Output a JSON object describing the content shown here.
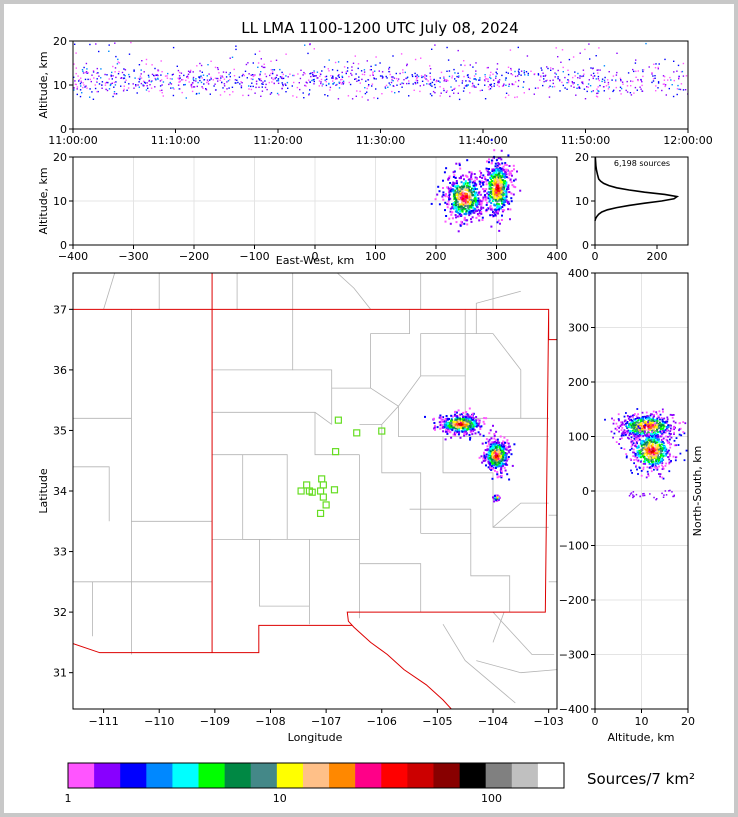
{
  "title": "LL LMA 1100-1200 UTC July 08, 2024",
  "chart_data": [
    {
      "panel": "time-height",
      "type": "scatter",
      "ylabel": "Altitude, km",
      "x_ticks": [
        "11:00:00",
        "11:10:00",
        "11:20:00",
        "11:30:00",
        "11:40:00",
        "11:50:00",
        "12:00:00"
      ],
      "x_range": [
        "11:00:00",
        "12:00:00"
      ],
      "ylim": [
        0,
        20
      ],
      "y_ticks": [
        0,
        10,
        20
      ],
      "band_altitude_km": [
        7,
        16
      ]
    },
    {
      "panel": "east-west altitude",
      "type": "heatmap",
      "xlabel": "East-West, km",
      "ylabel": "Altitude, km",
      "xlim": [
        -400,
        400
      ],
      "x_ticks": [
        -400,
        -300,
        -200,
        -100,
        0,
        100,
        200,
        300,
        400
      ],
      "ylim": [
        0,
        20
      ],
      "y_ticks": [
        0,
        10,
        20
      ],
      "grid": true,
      "clusters": [
        {
          "x_km": 245,
          "alt_km": 11,
          "x_spread": 35,
          "alt_spread": 6
        },
        {
          "x_km": 300,
          "alt_km": 13,
          "x_spread": 25,
          "alt_spread": 7
        }
      ]
    },
    {
      "panel": "altitude histogram",
      "type": "line",
      "annotation": "6,198 sources",
      "xlim": [
        0,
        300
      ],
      "x_ticks": [
        0,
        200
      ],
      "ylim": [
        0,
        20
      ],
      "y_ticks": [
        0,
        10,
        20
      ],
      "profile": [
        [
          0,
          5.5
        ],
        [
          2,
          6
        ],
        [
          6,
          6.5
        ],
        [
          12,
          7
        ],
        [
          22,
          7.5
        ],
        [
          40,
          8
        ],
        [
          70,
          8.5
        ],
        [
          110,
          9
        ],
        [
          160,
          9.5
        ],
        [
          215,
          10
        ],
        [
          255,
          10.5
        ],
        [
          265,
          11
        ],
        [
          225,
          11.5
        ],
        [
          160,
          12
        ],
        [
          110,
          12.5
        ],
        [
          70,
          13
        ],
        [
          45,
          13.5
        ],
        [
          28,
          14
        ],
        [
          18,
          14.5
        ],
        [
          12,
          15
        ],
        [
          8,
          16
        ],
        [
          5,
          17
        ],
        [
          3,
          18
        ],
        [
          2,
          19
        ],
        [
          1,
          20
        ]
      ]
    },
    {
      "panel": "plan view",
      "type": "scatter",
      "xlabel": "Longitude",
      "ylabel": "Latitude",
      "xlim": [
        -111.55,
        -102.85
      ],
      "ylim": [
        30.4,
        37.6
      ],
      "x_ticks": [
        -111,
        -110,
        -109,
        -108,
        -107,
        -106,
        -105,
        -104,
        -103
      ],
      "y_ticks": [
        31,
        32,
        33,
        34,
        35,
        36,
        37
      ],
      "clusters": [
        {
          "lon": -104.6,
          "lat": 35.12,
          "lon_spread": 0.45,
          "lat_spread": 0.18
        },
        {
          "lon": -103.95,
          "lat": 34.6,
          "lon_spread": 0.25,
          "lat_spread": 0.3
        },
        {
          "lon": -103.95,
          "lat": 33.9,
          "lon_spread": 0.06,
          "lat_spread": 0.05
        }
      ],
      "stations": [
        [
          -106.78,
          35.17
        ],
        [
          -106.45,
          34.96
        ],
        [
          -106.0,
          34.99
        ],
        [
          -106.83,
          34.65
        ],
        [
          -107.08,
          34.2
        ],
        [
          -107.35,
          34.1
        ],
        [
          -107.05,
          34.1
        ],
        [
          -107.45,
          34.0
        ],
        [
          -107.3,
          34.0
        ],
        [
          -107.1,
          34.0
        ],
        [
          -106.85,
          34.02
        ],
        [
          -107.05,
          33.9
        ],
        [
          -107.0,
          33.77
        ],
        [
          -107.1,
          33.63
        ],
        [
          -107.25,
          33.98
        ]
      ]
    },
    {
      "panel": "north-south altitude",
      "type": "heatmap",
      "xlabel": "Altitude, km",
      "ylabel": "North-South, km",
      "xlim": [
        0,
        20
      ],
      "x_ticks": [
        0,
        10,
        20
      ],
      "ylim": [
        -400,
        400
      ],
      "y_ticks": [
        -400,
        -300,
        -200,
        -100,
        0,
        100,
        200,
        300,
        400
      ],
      "grid": true,
      "clusters": [
        {
          "alt_km": 11,
          "ns_km": 120,
          "alt_spread": 7,
          "ns_spread": 25
        },
        {
          "alt_km": 12,
          "ns_km": 75,
          "alt_spread": 5,
          "ns_spread": 40
        }
      ]
    },
    {
      "panel": "colorbar",
      "type": "heatmap",
      "label": "Sources/7 km²",
      "scale": "log",
      "tick_labels": [
        "1",
        "10",
        "100"
      ],
      "colors": [
        "#ff55ff",
        "#8800ff",
        "#0000ff",
        "#0088ff",
        "#00ffff",
        "#00ff00",
        "#008844",
        "#448888",
        "#ffff00",
        "#ffc088",
        "#ff8800",
        "#ff0088",
        "#ff0000",
        "#cc0000",
        "#880000",
        "#000000",
        "#808080",
        "#c0c0c0",
        "#ffffff"
      ]
    }
  ]
}
